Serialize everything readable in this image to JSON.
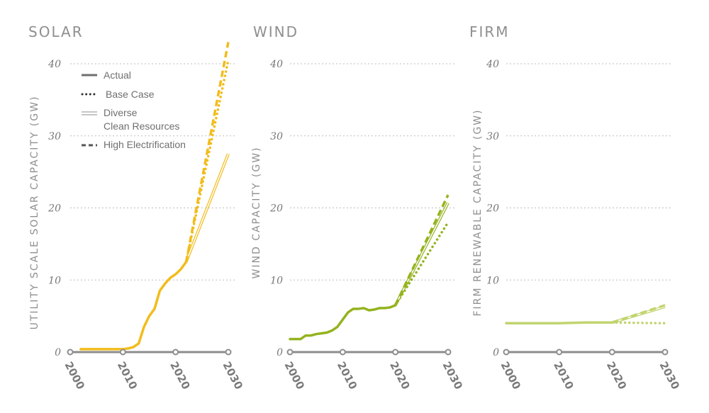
{
  "chart_data": [
    {
      "type": "line",
      "title": "SOLAR",
      "ylabel": "UTILITY SCALE SOLAR CAPACITY (GW)",
      "xlabel": "",
      "xlim": [
        2000,
        2030
      ],
      "ylim": [
        0,
        40
      ],
      "yticks": [
        0,
        10,
        20,
        30,
        40
      ],
      "xticks": [
        2000,
        2010,
        2020,
        2030
      ],
      "grid": true,
      "legend": "top-left",
      "color": "#f2bc1b",
      "series": [
        {
          "name": "Actual",
          "style": "solid",
          "x": [
            2002,
            2004,
            2006,
            2008,
            2010,
            2011,
            2012,
            2013,
            2014,
            2015,
            2016,
            2017,
            2018,
            2019,
            2020,
            2021,
            2022
          ],
          "y": [
            0.4,
            0.4,
            0.4,
            0.4,
            0.4,
            0.5,
            0.7,
            1.2,
            3.5,
            5,
            6,
            8.5,
            9.5,
            10.3,
            10.8,
            11.5,
            12.5
          ]
        },
        {
          "name": "Base Case",
          "style": "dotted",
          "x": [
            2022,
            2030
          ],
          "y": [
            12.5,
            40.5
          ]
        },
        {
          "name": "Diverse Clean Resources",
          "style": "double",
          "x": [
            2022,
            2030
          ],
          "y": [
            12.5,
            27.5
          ]
        },
        {
          "name": "High Electrification",
          "style": "dashed",
          "x": [
            2022,
            2030
          ],
          "y": [
            12.5,
            43
          ]
        }
      ]
    },
    {
      "type": "line",
      "title": "WIND",
      "ylabel": "WIND CAPACITY (GW)",
      "xlabel": "",
      "xlim": [
        2000,
        2030
      ],
      "ylim": [
        0,
        40
      ],
      "yticks": [
        0,
        10,
        20,
        30,
        40
      ],
      "xticks": [
        2000,
        2010,
        2020,
        2030
      ],
      "grid": true,
      "color": "#94b31e",
      "series": [
        {
          "name": "Actual",
          "style": "solid",
          "x": [
            2000,
            2001,
            2002,
            2003,
            2004,
            2005,
            2006,
            2007,
            2008,
            2009,
            2010,
            2011,
            2012,
            2013,
            2014,
            2015,
            2016,
            2017,
            2018,
            2019,
            2020
          ],
          "y": [
            1.8,
            1.8,
            1.8,
            2.3,
            2.3,
            2.5,
            2.6,
            2.7,
            3.0,
            3.5,
            4.5,
            5.5,
            6.0,
            6.0,
            6.1,
            5.8,
            5.9,
            6.1,
            6.1,
            6.2,
            6.5
          ]
        },
        {
          "name": "Base Case",
          "style": "dotted",
          "x": [
            2020,
            2030
          ],
          "y": [
            6.5,
            18
          ]
        },
        {
          "name": "Diverse Clean Resources",
          "style": "double",
          "x": [
            2020,
            2030
          ],
          "y": [
            6.5,
            20.7
          ]
        },
        {
          "name": "High Electrification",
          "style": "dashed",
          "x": [
            2020,
            2030
          ],
          "y": [
            6.5,
            21.8
          ]
        }
      ]
    },
    {
      "type": "line",
      "title": "FIRM",
      "ylabel": "FIRM RENEWABLE CAPACITY (GW)",
      "xlabel": "",
      "xlim": [
        2000,
        2030
      ],
      "ylim": [
        0,
        40
      ],
      "yticks": [
        0,
        10,
        20,
        30,
        40
      ],
      "xticks": [
        2000,
        2010,
        2020,
        2030
      ],
      "grid": true,
      "color": "#c1d46e",
      "series": [
        {
          "name": "Actual",
          "style": "solid",
          "x": [
            2000,
            2005,
            2010,
            2015,
            2020
          ],
          "y": [
            4.0,
            4.0,
            4.0,
            4.1,
            4.1
          ]
        },
        {
          "name": "Base Case",
          "style": "dotted",
          "x": [
            2020,
            2030
          ],
          "y": [
            4.1,
            4.0
          ]
        },
        {
          "name": "Diverse Clean Resources",
          "style": "double",
          "x": [
            2020,
            2030
          ],
          "y": [
            4.1,
            6.3
          ]
        },
        {
          "name": "High Electrification",
          "style": "dashed",
          "x": [
            2020,
            2030
          ],
          "y": [
            4.1,
            6.5
          ]
        }
      ]
    }
  ],
  "legend": {
    "items": [
      {
        "label": "Actual",
        "style": "solid"
      },
      {
        "label": "Base Case",
        "style": "dotted"
      },
      {
        "label": "Diverse",
        "label2": "Clean Resources",
        "style": "double"
      },
      {
        "label": "High Electrification",
        "style": "dashed"
      }
    ],
    "color": "#6f6f6f"
  },
  "axis_color": "#8d8d8d",
  "grid_color": "#bdbdbd"
}
